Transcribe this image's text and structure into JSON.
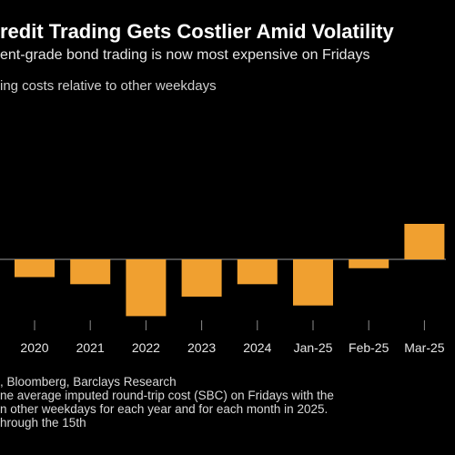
{
  "chart_data": {
    "type": "bar",
    "title": "redit Trading Gets Costlier Amid Volatility",
    "subtitle": "ent-grade bond trading is now most expensive on Fridays",
    "ylabel": "ing costs relative to other weekdays",
    "xlabel": "",
    "categories": [
      "2020",
      "2021",
      "2022",
      "2023",
      "2024",
      "Jan-25",
      "Feb-25",
      "Mar-25"
    ],
    "values": [
      -1.0,
      -1.4,
      -3.2,
      -2.1,
      -1.4,
      -2.6,
      -0.5,
      2.0
    ],
    "ylim": [
      -3.6,
      3.6
    ],
    "grid": false,
    "legend": "none",
    "bar_color": "#f0a030",
    "baseline_color": "#999999",
    "tick_color": "#8c8c8c"
  },
  "footer": {
    "source": ", Bloomberg, Barclays Research",
    "note1": "ne average imputed round-trip cost (SBC) on Fridays with the",
    "note2": "n other weekdays for each year and for each month in 2025.",
    "note3": "hrough the 15th"
  }
}
